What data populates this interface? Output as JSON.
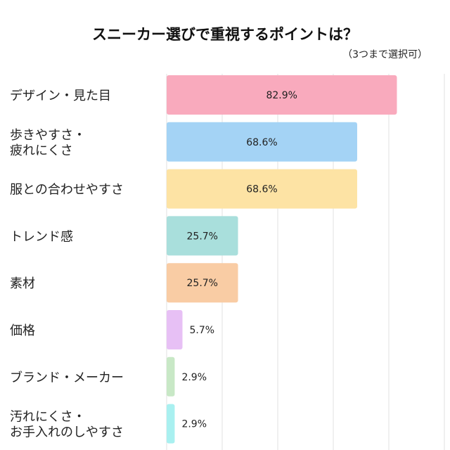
{
  "chart_data": {
    "type": "bar",
    "orientation": "horizontal",
    "title": "スニーカー選びで重視するポイントは？",
    "subtitle": "（3つまで選択可）",
    "categories": [
      [
        "デザイン・見た目"
      ],
      [
        "歩きやすさ・",
        "疲れにくさ"
      ],
      [
        "服との合わせやすさ"
      ],
      [
        "トレンド感"
      ],
      [
        "素材"
      ],
      [
        "価格"
      ],
      [
        "ブランド・メーカー"
      ],
      [
        "汚れにくさ・",
        "お手入れのしやすさ"
      ]
    ],
    "values": [
      82.9,
      68.6,
      68.6,
      25.7,
      25.7,
      5.7,
      2.9,
      2.9
    ],
    "value_labels": [
      "82.9%",
      "68.6%",
      "68.6%",
      "25.7%",
      "25.7%",
      "5.7%",
      "2.9%",
      "2.9%"
    ],
    "colors": [
      "#f9aabd",
      "#a4d3f5",
      "#fde3a4",
      "#a9dfdc",
      "#f9cca4",
      "#e7c0f5",
      "#c8e8c6",
      "#a9f0f0"
    ],
    "xlim": [
      0,
      100
    ],
    "grid": true,
    "gridline_step": 20,
    "legend": "none"
  }
}
